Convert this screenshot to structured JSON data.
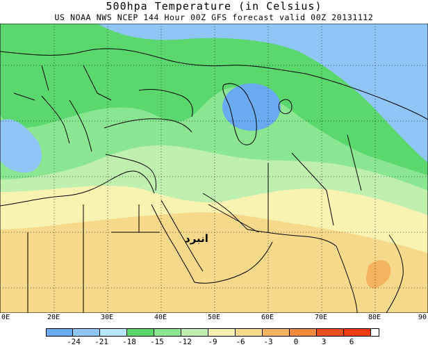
{
  "title": "500hpa  Temperature (in Celsius)",
  "subtitle": "US NOAA NWS NCEP 144 Hour 00Z GFS forecast valid 00Z 20131112",
  "map_annotation": "انبرد",
  "longitude_labels": [
    "0E",
    "20E",
    "30E",
    "40E",
    "50E",
    "60E",
    "70E",
    "80E",
    "90"
  ],
  "legend": {
    "levels": [
      "-24",
      "-21",
      "-18",
      "-15",
      "-12",
      "-9",
      "-6",
      "-3",
      "0",
      "3",
      "6"
    ],
    "colors": [
      "#6aaaf0",
      "#8fc6f6",
      "#b4e8fc",
      "#5ad86e",
      "#8ae691",
      "#c0f0b0",
      "#f8f3b0",
      "#f6d98a",
      "#f3b35f",
      "#f08a3c",
      "#e8501e",
      "#f03a12"
    ]
  },
  "zone_colors": {
    "cold_core": "#6aaaf0",
    "cool": "#8fc6f6",
    "mid_green": "#5ad86e",
    "light_green": "#8ae691",
    "pale_green": "#c0f0b0",
    "pale_yellow": "#f8f3b0",
    "warm_yellow": "#f6d98a",
    "orange": "#f3b35f"
  }
}
